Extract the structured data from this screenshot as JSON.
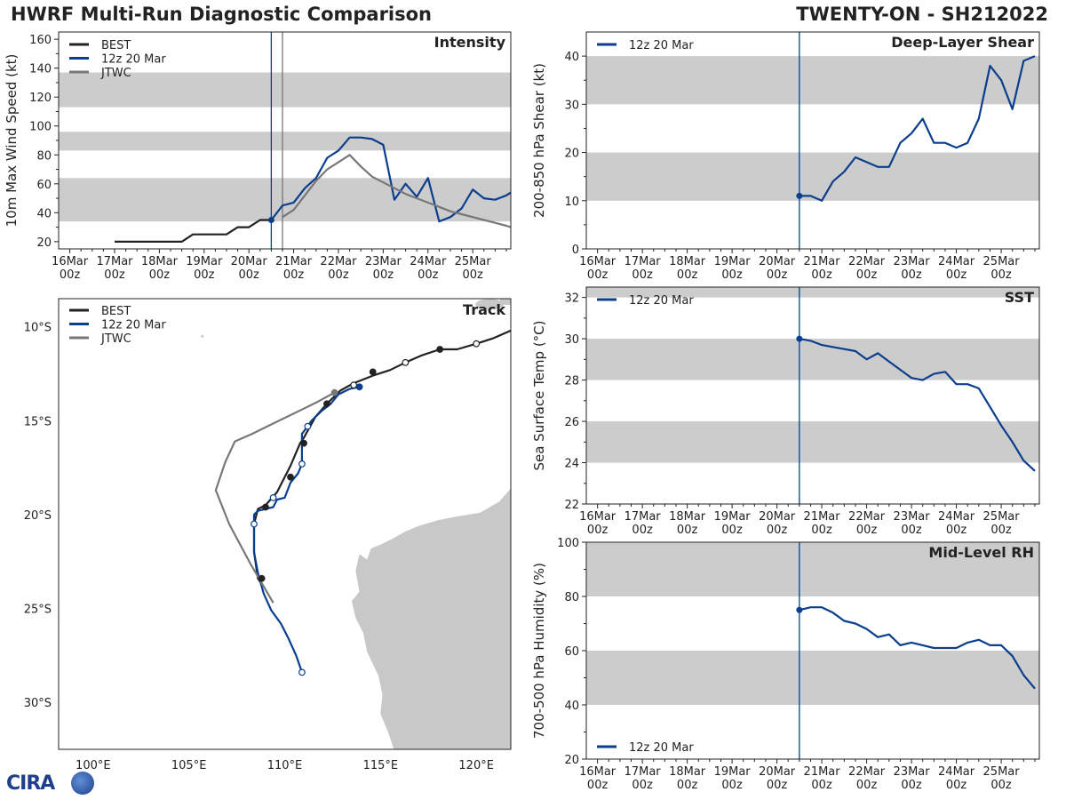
{
  "header": {
    "title_left": "HWRF Multi-Run Diagnostic Comparison",
    "title_right": "TWENTY-ON - SH212022"
  },
  "logo": {
    "text": "CIRA"
  },
  "colors": {
    "best": "#222222",
    "hwrf": "#0b3e8c",
    "jtwc": "#777777",
    "band": "#cccccc",
    "land": "#c8c8c8"
  },
  "time_axis": {
    "days": [
      "16Mar",
      "17Mar",
      "18Mar",
      "19Mar",
      "20Mar",
      "21Mar",
      "22Mar",
      "23Mar",
      "24Mar",
      "25Mar"
    ],
    "hour": "00z",
    "init_day": 20.5
  },
  "chart_data": [
    {
      "id": "intensity",
      "type": "line",
      "title": "Intensity",
      "ylabel": "10m Max Wind Speed (kt)",
      "xlabel": "",
      "xlim": [
        15.75,
        25.85
      ],
      "ylim": [
        15,
        165
      ],
      "yticks": [
        20,
        40,
        60,
        80,
        100,
        120,
        140,
        160
      ],
      "bands": [
        [
          34,
          64
        ],
        [
          83,
          96
        ],
        [
          113,
          137
        ]
      ],
      "legend": [
        "BEST",
        "12z 20 Mar",
        "JTWC"
      ],
      "legend_position": "top-left",
      "vlines": [
        {
          "x": 20.5,
          "color": "hwrf"
        },
        {
          "x": 20.75,
          "color": "jtwc"
        }
      ],
      "series": [
        {
          "name": "BEST",
          "color": "best",
          "x": [
            17.0,
            17.25,
            17.5,
            17.75,
            18.0,
            18.25,
            18.5,
            18.75,
            19.0,
            19.25,
            19.5,
            19.75,
            20.0,
            20.25,
            20.5
          ],
          "values": [
            20,
            20,
            20,
            20,
            20,
            20,
            20,
            25,
            25,
            25,
            25,
            30,
            30,
            35,
            35
          ]
        },
        {
          "name": "12z 20 Mar",
          "color": "hwrf",
          "x": [
            20.5,
            20.75,
            21.0,
            21.25,
            21.5,
            21.75,
            22.0,
            22.25,
            22.5,
            22.75,
            23.0,
            23.25,
            23.5,
            23.75,
            24.0,
            24.25,
            24.5,
            24.75,
            25.0,
            25.25,
            25.5,
            25.75,
            25.85
          ],
          "values": [
            35,
            45,
            47,
            57,
            64,
            78,
            83,
            92,
            92,
            91,
            87,
            49,
            60,
            51,
            64,
            34,
            37,
            43,
            56,
            50,
            49,
            52,
            54
          ]
        },
        {
          "name": "JTWC",
          "color": "jtwc",
          "x": [
            20.75,
            21.0,
            21.25,
            21.5,
            21.75,
            22.0,
            22.25,
            22.5,
            22.75,
            23.0,
            23.25,
            23.5,
            23.75,
            24.0,
            24.25,
            24.5,
            24.75,
            25.0,
            25.25,
            25.5,
            25.75,
            25.85
          ],
          "values": [
            37,
            42,
            52,
            62,
            70,
            75,
            80,
            72,
            65,
            61,
            57,
            53,
            50,
            47,
            44,
            41,
            39,
            37,
            35,
            33,
            31,
            30
          ]
        }
      ]
    },
    {
      "id": "shear",
      "type": "line",
      "title": "Deep-Layer Shear",
      "ylabel": "200-850 hPa Shear (kt)",
      "xlim": [
        15.75,
        25.85
      ],
      "ylim": [
        0,
        45
      ],
      "yticks": [
        0,
        10,
        20,
        30,
        40
      ],
      "bands": [
        [
          10,
          20
        ],
        [
          30,
          40
        ]
      ],
      "legend": [
        "12z 20 Mar"
      ],
      "legend_position": "top-left",
      "vlines": [
        {
          "x": 20.5,
          "color": "hwrf"
        }
      ],
      "series": [
        {
          "name": "12z 20 Mar",
          "color": "hwrf",
          "x": [
            20.5,
            20.75,
            21.0,
            21.25,
            21.5,
            21.75,
            22.0,
            22.25,
            22.5,
            22.75,
            23.0,
            23.25,
            23.5,
            23.75,
            24.0,
            24.25,
            24.5,
            24.75,
            25.0,
            25.25,
            25.5,
            25.75
          ],
          "values": [
            11,
            11,
            10,
            14,
            16,
            19,
            18,
            17,
            17,
            22,
            24,
            27,
            22,
            22,
            21,
            22,
            27,
            38,
            35,
            29,
            39,
            40
          ]
        }
      ]
    },
    {
      "id": "sst",
      "type": "line",
      "title": "SST",
      "ylabel": "Sea Surface Temp (°C)",
      "xlim": [
        15.75,
        25.85
      ],
      "ylim": [
        22,
        32.5
      ],
      "yticks": [
        22,
        24,
        26,
        28,
        30,
        32
      ],
      "bands": [
        [
          24,
          26
        ],
        [
          28,
          30
        ],
        [
          32,
          32.5
        ]
      ],
      "legend": [
        "12z 20 Mar"
      ],
      "legend_position": "top-left",
      "vlines": [
        {
          "x": 20.5,
          "color": "hwrf"
        }
      ],
      "series": [
        {
          "name": "12z 20 Mar",
          "color": "hwrf",
          "x": [
            20.5,
            20.75,
            21.0,
            21.25,
            21.5,
            21.75,
            22.0,
            22.25,
            22.5,
            22.75,
            23.0,
            23.25,
            23.5,
            23.75,
            24.0,
            24.25,
            24.5,
            24.75,
            25.0,
            25.25,
            25.5,
            25.75
          ],
          "values": [
            30.0,
            29.9,
            29.7,
            29.6,
            29.5,
            29.4,
            29.0,
            29.3,
            28.9,
            28.5,
            28.1,
            28.0,
            28.3,
            28.4,
            27.8,
            27.8,
            27.6,
            26.7,
            25.8,
            25.0,
            24.1,
            23.6
          ]
        }
      ]
    },
    {
      "id": "rh",
      "type": "line",
      "title": "Mid-Level RH",
      "ylabel": "700-500 hPa Humidity (%)",
      "xlim": [
        15.75,
        25.85
      ],
      "ylim": [
        20,
        100
      ],
      "yticks": [
        20,
        40,
        60,
        80,
        100
      ],
      "bands": [
        [
          40,
          60
        ],
        [
          80,
          100
        ]
      ],
      "legend": [
        "12z 20 Mar"
      ],
      "legend_position": "bottom-left",
      "vlines": [
        {
          "x": 20.5,
          "color": "hwrf"
        }
      ],
      "series": [
        {
          "name": "12z 20 Mar",
          "color": "hwrf",
          "x": [
            20.5,
            20.75,
            21.0,
            21.25,
            21.5,
            21.75,
            22.0,
            22.25,
            22.5,
            22.75,
            23.0,
            23.25,
            23.5,
            23.75,
            24.0,
            24.25,
            24.5,
            24.75,
            25.0,
            25.25,
            25.5,
            25.75
          ],
          "values": [
            75,
            76,
            76,
            74,
            71,
            70,
            68,
            65,
            66,
            62,
            63,
            62,
            61,
            61,
            61,
            63,
            64,
            62,
            62,
            58,
            51,
            46
          ]
        }
      ]
    },
    {
      "id": "track",
      "type": "scatter",
      "title": "Track",
      "xlabel": "",
      "ylabel": "",
      "xlim": [
        98.2,
        121.8
      ],
      "ylim": [
        -32.5,
        -8.5
      ],
      "xticks": [
        100,
        105,
        110,
        115,
        120
      ],
      "xtick_labels": [
        "100°E",
        "105°E",
        "110°E",
        "115°E",
        "120°E"
      ],
      "yticks": [
        -10,
        -15,
        -20,
        -25,
        -30
      ],
      "ytick_labels": [
        "10°S",
        "15°S",
        "20°S",
        "25°S",
        "30°S"
      ],
      "legend": [
        "BEST",
        "12z 20 Mar",
        "JTWC"
      ],
      "legend_position": "top-left",
      "series": [
        {
          "name": "BEST",
          "color": "best",
          "lon": [
            121.8,
            120.9,
            120.0,
            119.0,
            118.1,
            117.2,
            116.3,
            115.5,
            114.6,
            113.6,
            112.9,
            112.2,
            111.6,
            111.0,
            110.8,
            110.3,
            110.0,
            109.6,
            109.0,
            108.6,
            108.4,
            108.4,
            108.6,
            108.8
          ],
          "lat": [
            -10.2,
            -10.6,
            -10.9,
            -11.2,
            -11.2,
            -11.5,
            -11.9,
            -12.3,
            -12.6,
            -13.0,
            -13.4,
            -14.1,
            -14.8,
            -15.9,
            -16.2,
            -17.4,
            -18.0,
            -18.8,
            -19.5,
            -19.7,
            -20.5,
            -22.0,
            -23.4,
            -23.7
          ],
          "markers": [
            {
              "lon": 120.0,
              "lat": -10.9,
              "fill": "open"
            },
            {
              "lon": 118.1,
              "lat": -11.2,
              "fill": "solid"
            },
            {
              "lon": 116.3,
              "lat": -11.9,
              "fill": "open"
            },
            {
              "lon": 114.6,
              "lat": -12.4,
              "fill": "solid"
            },
            {
              "lon": 113.6,
              "lat": -13.1,
              "fill": "open"
            },
            {
              "lon": 112.2,
              "lat": -14.1,
              "fill": "solid"
            },
            {
              "lon": 111.0,
              "lat": -16.2,
              "fill": "solid"
            },
            {
              "lon": 110.3,
              "lat": -18.0,
              "fill": "solid"
            },
            {
              "lon": 109.0,
              "lat": -19.6,
              "fill": "solid"
            },
            {
              "lon": 108.8,
              "lat": -23.4,
              "fill": "solid"
            }
          ]
        },
        {
          "name": "12z 20 Mar",
          "color": "hwrf",
          "lon": [
            113.9,
            113.4,
            112.8,
            112.4,
            111.9,
            111.4,
            111.2,
            110.9,
            110.9,
            110.9,
            110.7,
            110.3,
            110.0,
            109.6,
            109.4,
            109.0,
            108.6,
            108.4,
            108.4,
            108.4,
            108.6,
            108.9,
            109.3,
            109.8,
            110.2,
            110.6,
            110.9
          ],
          "lat": [
            -13.2,
            -13.3,
            -13.6,
            -14.1,
            -14.5,
            -15.0,
            -15.3,
            -15.7,
            -16.4,
            -17.3,
            -17.8,
            -18.3,
            -19.1,
            -19.2,
            -19.6,
            -19.7,
            -19.8,
            -20.0,
            -20.5,
            -22.0,
            -23.1,
            -24.2,
            -25.1,
            -25.8,
            -26.6,
            -27.5,
            -28.4
          ],
          "markers": [
            {
              "lon": 113.9,
              "lat": -13.2,
              "fill": "solid"
            },
            {
              "lon": 111.2,
              "lat": -15.3,
              "fill": "open"
            },
            {
              "lon": 110.9,
              "lat": -17.3,
              "fill": "open"
            },
            {
              "lon": 109.4,
              "lat": -19.1,
              "fill": "open"
            },
            {
              "lon": 108.4,
              "lat": -20.5,
              "fill": "open"
            },
            {
              "lon": 110.9,
              "lat": -28.4,
              "fill": "open"
            }
          ]
        },
        {
          "name": "JTWC",
          "color": "jtwc",
          "lon": [
            112.6,
            111.7,
            110.7,
            109.5,
            108.3,
            107.4,
            106.9,
            106.4,
            107.1,
            108.2,
            109.4
          ],
          "lat": [
            -13.5,
            -14.0,
            -14.5,
            -15.1,
            -15.7,
            -16.1,
            -17.2,
            -18.7,
            -20.5,
            -22.6,
            -24.7
          ],
          "markers": [
            {
              "lon": 112.6,
              "lat": -13.5,
              "fill": "solid"
            }
          ]
        }
      ]
    }
  ]
}
